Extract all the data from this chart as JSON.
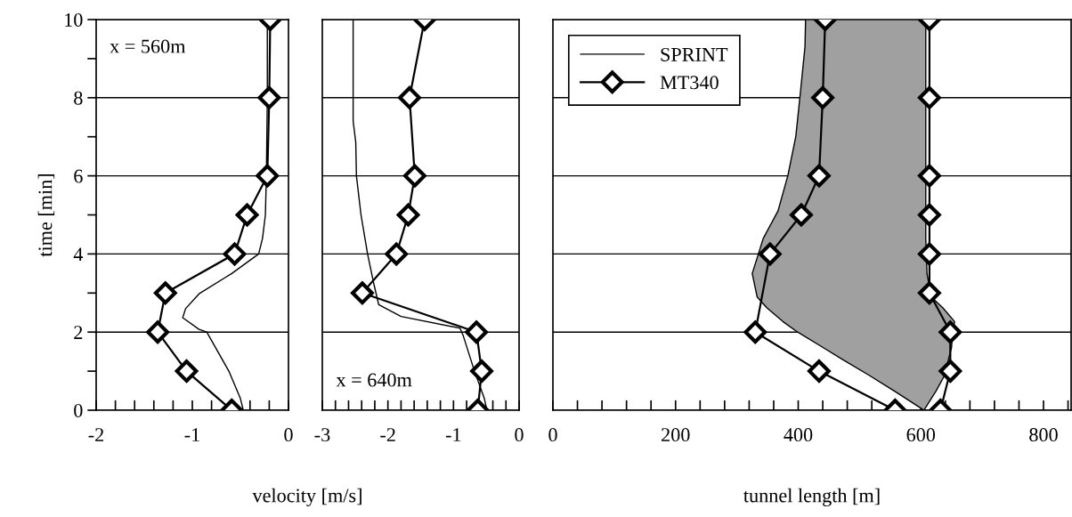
{
  "chart_data": [
    {
      "type": "line",
      "ylabel": "time [min]",
      "xlabel": "velocity [m/s]",
      "annotations": [
        "x = 560m"
      ],
      "xlim": [
        -2,
        0
      ],
      "ylim": [
        0,
        10
      ],
      "xticks": [
        -2,
        {
          "value": -1.8,
          "label": null
        },
        {
          "value": -1.6,
          "label": null
        },
        {
          "value": -1.4,
          "label": null
        },
        {
          "value": -1.2,
          "label": null
        },
        -1,
        {
          "value": -0.8,
          "label": null
        },
        {
          "value": -0.6,
          "label": null
        },
        {
          "value": -0.4,
          "label": null
        },
        {
          "value": -0.2,
          "label": null
        },
        0
      ],
      "yticks": [
        0,
        {
          "value": 1,
          "label": null
        },
        2,
        {
          "value": 3,
          "label": null
        },
        4,
        {
          "value": 5,
          "label": null
        },
        6,
        {
          "value": 7,
          "label": null
        },
        8,
        {
          "value": 9,
          "label": null
        },
        10
      ],
      "grid": "y",
      "series": [
        {
          "color": "#000000",
          "marker": "none",
          "x": [
            -0.47,
            -0.5,
            -0.62,
            -0.85,
            -0.93,
            -1.1,
            -1.07,
            -0.93,
            -0.59,
            -0.31,
            -0.27,
            -0.24,
            -0.23,
            -0.22,
            -0.22
          ],
          "values": [
            0,
            0.3,
            1,
            2,
            2.07,
            2.37,
            2.6,
            2.98,
            3.5,
            4,
            4.4,
            5,
            6,
            8,
            10
          ]
        },
        {
          "color": "#000000",
          "marker": "diamond",
          "x": [
            -0.59,
            -1.06,
            -1.36,
            -1.28,
            -0.56,
            -0.43,
            -0.22,
            -0.2,
            -0.19
          ],
          "values": [
            0,
            1,
            2,
            3,
            4,
            5,
            6,
            8,
            10
          ]
        }
      ]
    },
    {
      "type": "line",
      "annotations": [
        "x = 640m"
      ],
      "xlim": [
        -3,
        0
      ],
      "ylim": [
        0,
        10
      ],
      "tick_labels": "x",
      "xticks": [
        -3,
        {
          "value": -2.8,
          "label": null
        },
        {
          "value": -2.6,
          "label": null
        },
        {
          "value": -2.4,
          "label": null
        },
        {
          "value": -2.2,
          "label": null
        },
        -2,
        {
          "value": -1.8,
          "label": null
        },
        {
          "value": -1.6,
          "label": null
        },
        {
          "value": -1.4,
          "label": null
        },
        {
          "value": -1.2,
          "label": null
        },
        -1,
        {
          "value": -0.8,
          "label": null
        },
        {
          "value": -0.6,
          "label": null
        },
        {
          "value": -0.4,
          "label": null
        },
        {
          "value": -0.2,
          "label": null
        },
        0
      ],
      "yticks": [
        0,
        2,
        4,
        6,
        8,
        10
      ],
      "grid": "y",
      "series": [
        {
          "color": "#000000",
          "marker": "none",
          "x": [
            -0.49,
            -0.53,
            -0.68,
            -0.85,
            -0.9,
            -1.8,
            -2.14,
            -2.21,
            -2.31,
            -2.41,
            -2.48,
            -2.49,
            -2.53,
            -2.53
          ],
          "values": [
            0,
            0.3,
            1,
            1.9,
            2.1,
            2.4,
            2.7,
            3.2,
            4,
            5,
            6,
            6.86,
            7.4,
            10
          ]
        },
        {
          "color": "#000000",
          "marker": "diamond",
          "x": [
            -0.63,
            -0.57,
            -0.65,
            -2.39,
            -1.87,
            -1.69,
            -1.59,
            -1.67,
            -1.44
          ],
          "values": [
            0,
            1,
            2,
            3,
            4,
            5,
            6,
            8,
            10
          ]
        }
      ]
    },
    {
      "type": "line",
      "xlabel": "tunnel length [m]",
      "xlim": [
        0,
        845
      ],
      "ylim": [
        0,
        10
      ],
      "tick_labels": "x",
      "legend": "top left",
      "xticks": [
        0,
        {
          "value": 40,
          "label": null
        },
        {
          "value": 80,
          "label": null
        },
        {
          "value": 120,
          "label": null
        },
        {
          "value": 160,
          "label": null
        },
        200,
        {
          "value": 240,
          "label": null
        },
        {
          "value": 280,
          "label": null
        },
        {
          "value": 320,
          "label": null
        },
        {
          "value": 360,
          "label": null
        },
        400,
        {
          "value": 440,
          "label": null
        },
        {
          "value": 480,
          "label": null
        },
        {
          "value": 520,
          "label": null
        },
        {
          "value": 560,
          "label": null
        },
        600,
        {
          "value": 640,
          "label": null
        },
        {
          "value": 680,
          "label": null
        },
        {
          "value": 720,
          "label": null
        },
        {
          "value": 760,
          "label": null
        },
        800,
        {
          "value": 840,
          "label": null
        }
      ],
      "yticks": [
        0,
        2,
        4,
        6,
        8,
        10
      ],
      "grid": "y",
      "series": [
        {
          "name": "SPRINT",
          "color": "#000000",
          "marker": "none",
          "values": [
            0,
            0.5,
            0.9,
            1.3,
            1.6,
            2.0,
            2.27,
            2.62,
            2.9,
            3.5,
            4.4,
            5.1,
            6,
            7,
            8.2,
            9.3,
            10
          ],
          "x": [
            605,
            556,
            515,
            472,
            441,
            399,
            375,
            349,
            333,
            325,
            343,
            367,
            383,
            396,
            404,
            411,
            412
          ]
        },
        {
          "color": "#000000",
          "marker": "none",
          "values": [
            0,
            0.5,
            0.9,
            1.3,
            1.6,
            2.0,
            2.27,
            2.62,
            2.9,
            3.5,
            4.4,
            5.1,
            6,
            7,
            8.2,
            9.3,
            10
          ],
          "x": [
            605,
            625,
            639,
            645,
            650,
            652,
            655,
            636,
            617,
            610,
            608,
            608,
            608,
            608,
            608,
            608,
            608
          ]
        },
        {
          "name": "MT340",
          "color": "#000000",
          "marker": "diamond",
          "x": [
            558,
            434,
            330,
            354,
            405,
            434,
            440,
            444
          ],
          "values": [
            0,
            1,
            2,
            4,
            5,
            6,
            8,
            10
          ]
        },
        {
          "color": "#000000",
          "marker": "diamond",
          "x": [
            632,
            648,
            648,
            614,
            614,
            614,
            614,
            614,
            614
          ],
          "values": [
            0,
            1,
            2,
            3,
            4,
            5,
            6,
            8,
            10
          ]
        }
      ]
    }
  ]
}
